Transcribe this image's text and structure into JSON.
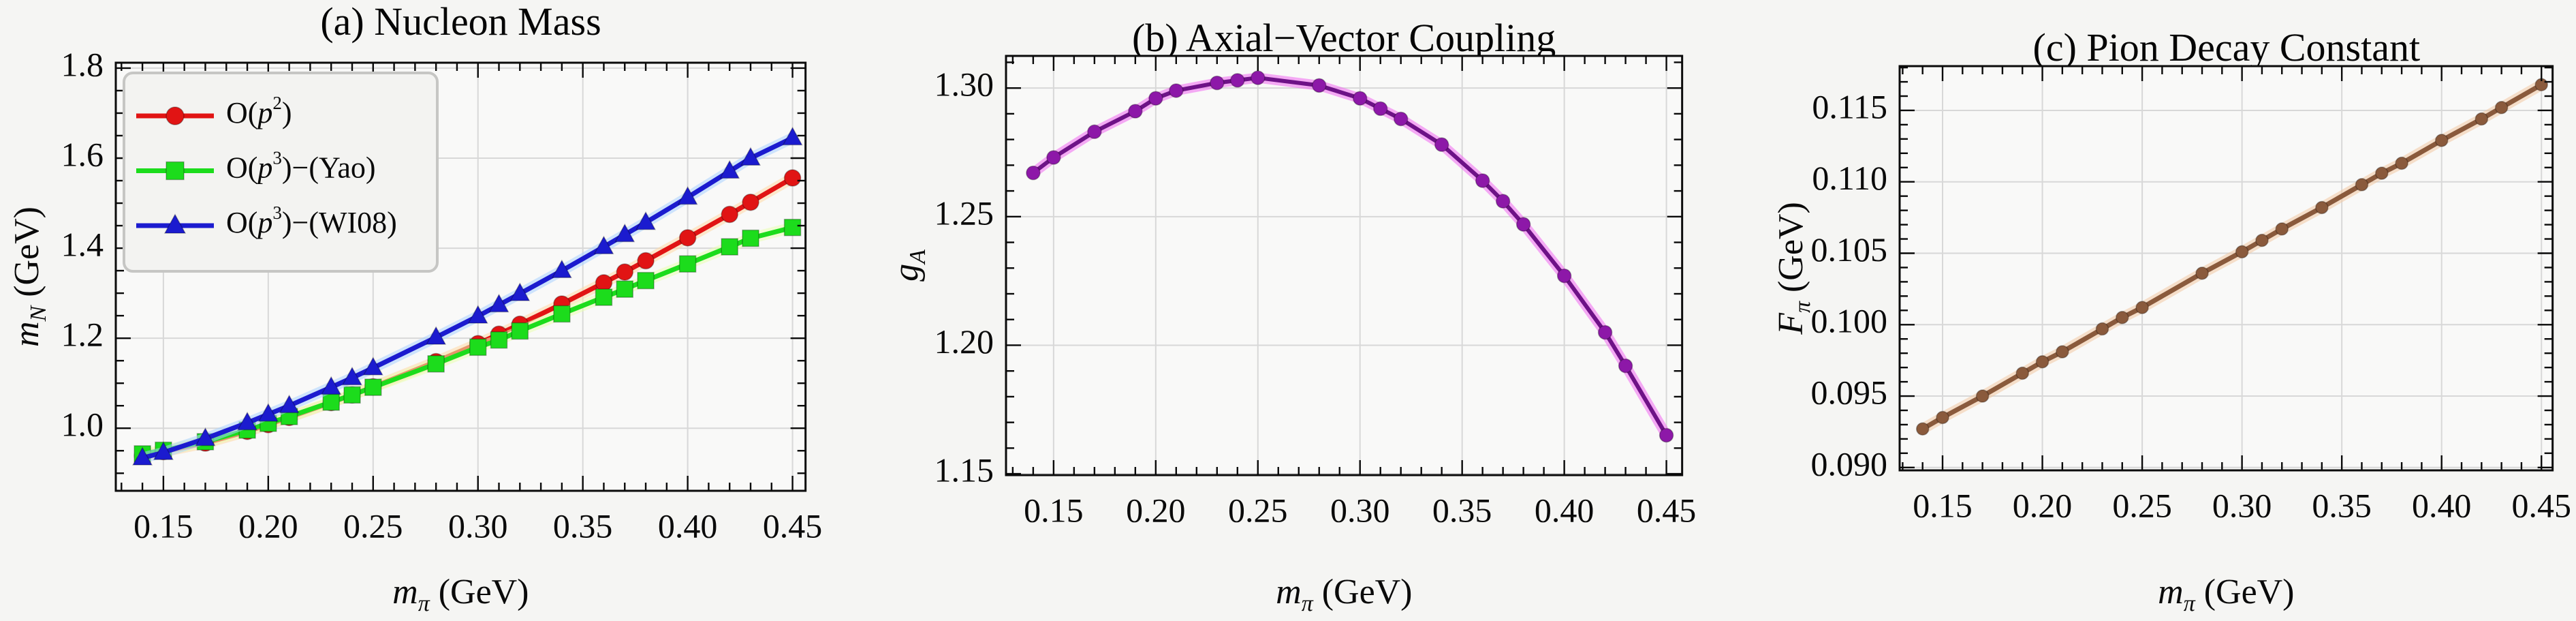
{
  "figure": {
    "background": "#f5f5f3",
    "plot_background": "#f9f9f8",
    "grid_color": "#d8d8d8",
    "frame_color": "#0b0b0b"
  },
  "chart_data": [
    {
      "type": "line",
      "title": "(a) Nucleon Mass",
      "xlabel": {
        "base": "m",
        "sub": "π",
        "rest": " (GeV)"
      },
      "ylabel": {
        "base": "m",
        "sub": "N",
        "rest": " (GeV)"
      },
      "xlim": [
        0.1273,
        0.4562
      ],
      "ylim": [
        0.861,
        1.812
      ],
      "x_ticks": [
        0.15,
        0.2,
        0.25,
        0.3,
        0.35,
        0.4,
        0.45
      ],
      "x_tick_labels": [
        "0.15",
        "0.20",
        "0.25",
        "0.30",
        "0.35",
        "0.40",
        "0.45"
      ],
      "x_minor_step": 0.01,
      "y_ticks": [
        1.0,
        1.2,
        1.4,
        1.6,
        1.8
      ],
      "y_tick_labels": [
        "1.0",
        "1.2",
        "1.4",
        "1.6",
        "1.8"
      ],
      "y_minor_step": 0.05,
      "grid": true,
      "legend_position": "top-left",
      "x": [
        0.14,
        0.15,
        0.17,
        0.19,
        0.2,
        0.21,
        0.23,
        0.24,
        0.25,
        0.28,
        0.3,
        0.31,
        0.32,
        0.34,
        0.36,
        0.37,
        0.38,
        0.4,
        0.42,
        0.43,
        0.45
      ],
      "series": [
        {
          "name": "O(p^2)",
          "marker": "circle",
          "color": "#e11414",
          "glow": "#ffd9a6",
          "values": [
            0.939,
            0.948,
            0.967,
            0.993,
            1.008,
            1.024,
            1.057,
            1.074,
            1.092,
            1.148,
            1.188,
            1.209,
            1.231,
            1.276,
            1.323,
            1.347,
            1.372,
            1.423,
            1.475,
            1.502,
            1.556
          ]
        },
        {
          "name": "O(p^3)−(Yao)",
          "marker": "square",
          "color": "#1cdc1c",
          "glow": "#eaffb0",
          "values": [
            0.943,
            0.951,
            0.97,
            0.996,
            1.011,
            1.026,
            1.058,
            1.074,
            1.091,
            1.143,
            1.18,
            1.196,
            1.216,
            1.254,
            1.291,
            1.309,
            1.328,
            1.365,
            1.403,
            1.422,
            1.446
          ]
        },
        {
          "name": "O(p^3)−(WI08)",
          "marker": "triangle",
          "color": "#1b1bcf",
          "glow": "#aad2ff",
          "values": [
            0.934,
            0.946,
            0.977,
            1.012,
            1.031,
            1.05,
            1.091,
            1.112,
            1.134,
            1.202,
            1.249,
            1.274,
            1.299,
            1.35,
            1.403,
            1.43,
            1.457,
            1.513,
            1.571,
            1.6,
            1.645
          ]
        }
      ]
    },
    {
      "type": "line",
      "title": "(b) Axial−Vector Coupling",
      "xlabel": {
        "base": "m",
        "sub": "π",
        "rest": " (GeV)"
      },
      "ylabel": {
        "base": "g",
        "sub": "A",
        "rest": ""
      },
      "xlim": [
        0.1267,
        0.4577
      ],
      "ylim": [
        1.1495,
        1.3125
      ],
      "x_ticks": [
        0.15,
        0.2,
        0.25,
        0.3,
        0.35,
        0.4,
        0.45
      ],
      "x_tick_labels": [
        "0.15",
        "0.20",
        "0.25",
        "0.30",
        "0.35",
        "0.40",
        "0.45"
      ],
      "x_minor_step": 0.01,
      "y_ticks": [
        1.15,
        1.2,
        1.25,
        1.3
      ],
      "y_tick_labels": [
        "1.15",
        "1.20",
        "1.25",
        "1.30"
      ],
      "y_minor_step": 0.01,
      "grid": true,
      "legend_position": "none",
      "x": [
        0.14,
        0.15,
        0.17,
        0.19,
        0.2,
        0.21,
        0.23,
        0.24,
        0.25,
        0.28,
        0.3,
        0.31,
        0.32,
        0.34,
        0.36,
        0.37,
        0.38,
        0.4,
        0.42,
        0.43,
        0.45
      ],
      "series": [
        {
          "name": "g_A",
          "marker": "circle",
          "color": "#8d18a8",
          "line_color": "#6e1287",
          "glow": "#f068f0",
          "values": [
            1.267,
            1.273,
            1.283,
            1.291,
            1.296,
            1.299,
            1.302,
            1.303,
            1.304,
            1.301,
            1.296,
            1.292,
            1.288,
            1.278,
            1.264,
            1.256,
            1.247,
            1.227,
            1.205,
            1.192,
            1.165
          ]
        }
      ]
    },
    {
      "type": "line",
      "title": "(c) Pion Decay Constant",
      "xlabel": {
        "base": "m",
        "sub": "π",
        "rest": " (GeV)"
      },
      "ylabel": {
        "base": "F",
        "sub": "π",
        "rest": " (GeV)"
      },
      "xlim": [
        0.1285,
        0.4556
      ],
      "ylim": [
        0.0898,
        0.1181
      ],
      "x_ticks": [
        0.15,
        0.2,
        0.25,
        0.3,
        0.35,
        0.4,
        0.45
      ],
      "x_tick_labels": [
        "0.15",
        "0.20",
        "0.25",
        "0.30",
        "0.35",
        "0.40",
        "0.45"
      ],
      "x_minor_step": 0.01,
      "y_ticks": [
        0.09,
        0.095,
        0.1,
        0.105,
        0.11,
        0.115
      ],
      "y_tick_labels": [
        "0.090",
        "0.095",
        "0.100",
        "0.105",
        "0.110",
        "0.115"
      ],
      "y_minor_step": 0.001,
      "grid": true,
      "legend_position": "none",
      "x": [
        0.14,
        0.15,
        0.17,
        0.19,
        0.2,
        0.21,
        0.23,
        0.24,
        0.25,
        0.28,
        0.3,
        0.31,
        0.32,
        0.34,
        0.36,
        0.37,
        0.38,
        0.4,
        0.42,
        0.43,
        0.45
      ],
      "series": [
        {
          "name": "F_π",
          "marker": "circle",
          "color": "#8a5a3c",
          "line_color": "#8a5a3c",
          "glow": "#f3c9a2",
          "values": [
            0.0927,
            0.0935,
            0.095,
            0.0966,
            0.0974,
            0.0981,
            0.0997,
            0.1005,
            0.1012,
            0.1036,
            0.1051,
            0.1059,
            0.1067,
            0.1082,
            0.1098,
            0.1106,
            0.1113,
            0.1129,
            0.1144,
            0.1152,
            0.1168
          ]
        }
      ]
    }
  ]
}
